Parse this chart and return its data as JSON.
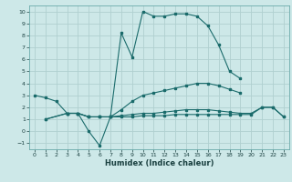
{
  "xlabel": "Humidex (Indice chaleur)",
  "bg_color": "#cde8e8",
  "grid_color": "#b0d0d0",
  "line_color": "#1a6b6b",
  "xlim": [
    -0.5,
    23.5
  ],
  "ylim": [
    -1.5,
    10.5
  ],
  "xticks": [
    0,
    1,
    2,
    3,
    4,
    5,
    6,
    7,
    8,
    9,
    10,
    11,
    12,
    13,
    14,
    15,
    16,
    17,
    18,
    19,
    20,
    21,
    22,
    23
  ],
  "yticks": [
    -1,
    0,
    1,
    2,
    3,
    4,
    5,
    6,
    7,
    8,
    9,
    10
  ],
  "line1_x": [
    0,
    1,
    2,
    3,
    4,
    5,
    6,
    7,
    8,
    9,
    10,
    11,
    12,
    13,
    14,
    15,
    16,
    17,
    18,
    19
  ],
  "line1_y": [
    3.0,
    2.8,
    2.5,
    1.5,
    1.5,
    0.0,
    -1.2,
    1.2,
    8.2,
    6.2,
    10.0,
    9.6,
    9.6,
    9.8,
    9.8,
    9.6,
    8.8,
    7.2,
    5.0,
    4.4
  ],
  "line2_x": [
    1,
    3,
    4,
    5,
    6,
    7,
    8,
    9,
    10,
    11,
    12,
    13,
    14,
    15,
    16,
    17,
    18,
    19
  ],
  "line2_y": [
    1.0,
    1.5,
    1.5,
    1.2,
    1.2,
    1.2,
    1.8,
    2.5,
    3.0,
    3.2,
    3.4,
    3.6,
    3.8,
    4.0,
    4.0,
    3.8,
    3.5,
    3.2
  ],
  "line3_x": [
    1,
    3,
    4,
    5,
    6,
    7,
    8,
    9,
    10,
    11,
    12,
    13,
    14,
    15,
    16,
    17,
    18,
    19,
    20,
    21,
    22,
    23
  ],
  "line3_y": [
    1.0,
    1.5,
    1.5,
    1.2,
    1.2,
    1.2,
    1.2,
    1.2,
    1.3,
    1.3,
    1.3,
    1.4,
    1.4,
    1.4,
    1.4,
    1.4,
    1.4,
    1.4,
    1.4,
    2.0,
    2.0,
    1.2
  ],
  "line4_x": [
    3,
    4,
    5,
    6,
    7,
    8,
    9,
    10,
    11,
    12,
    13,
    14,
    15,
    16,
    17,
    18,
    19,
    20,
    21,
    22,
    23
  ],
  "line4_y": [
    1.5,
    1.5,
    1.2,
    1.2,
    1.2,
    1.3,
    1.4,
    1.5,
    1.5,
    1.6,
    1.7,
    1.8,
    1.8,
    1.8,
    1.7,
    1.6,
    1.5,
    1.5,
    2.0,
    2.0,
    1.2
  ]
}
